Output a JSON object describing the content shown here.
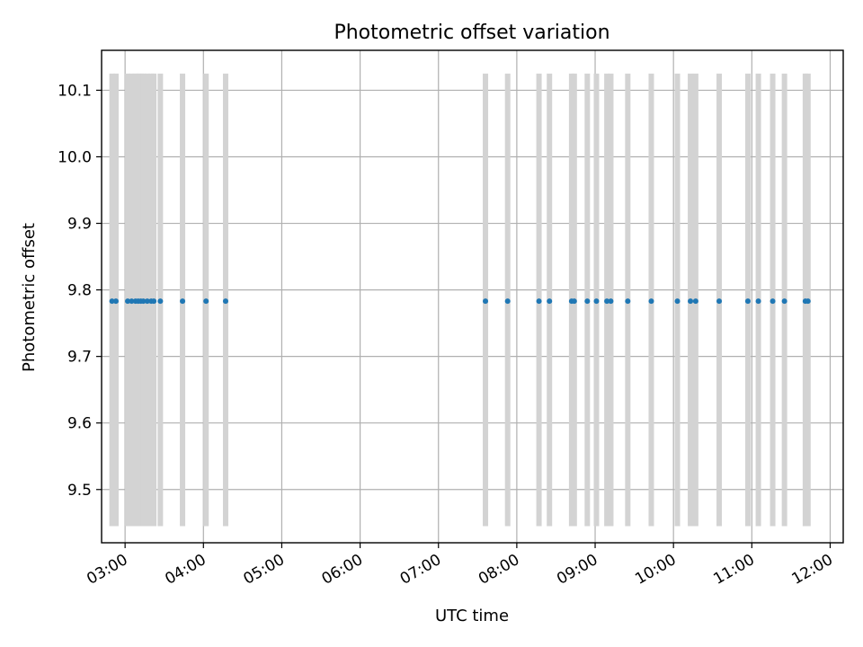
{
  "chart_data": {
    "type": "scatter",
    "title": "Photometric offset variation",
    "xlabel": "UTC time",
    "ylabel": "Photometric offset",
    "x_ticks": [
      "03:00",
      "04:00",
      "05:00",
      "06:00",
      "07:00",
      "08:00",
      "09:00",
      "10:00",
      "11:00",
      "12:00"
    ],
    "y_ticks": [
      "9.5",
      "9.6",
      "9.7",
      "9.8",
      "9.9",
      "10.0",
      "10.1"
    ],
    "xlim": [
      "02:42",
      "12:10"
    ],
    "ylim": [
      9.42,
      10.16
    ],
    "grid": true,
    "error_band": [
      9.445,
      10.125
    ],
    "colors": {
      "points": "#1f77b4",
      "bars": "#d3d3d3",
      "grid": "#b0b0b0"
    },
    "points_y": 9.783,
    "points_x": [
      "02:50",
      "02:53",
      "03:02",
      "03:05",
      "03:08",
      "03:10",
      "03:12",
      "03:14",
      "03:17",
      "03:20",
      "03:22",
      "03:27",
      "03:44",
      "04:02",
      "04:17",
      "07:36",
      "07:53",
      "08:17",
      "08:25",
      "08:42",
      "08:44",
      "08:54",
      "09:01",
      "09:09",
      "09:12",
      "09:25",
      "09:43",
      "10:03",
      "10:13",
      "10:17",
      "10:35",
      "10:57",
      "11:05",
      "11:16",
      "11:25",
      "11:41",
      "11:43"
    ]
  }
}
